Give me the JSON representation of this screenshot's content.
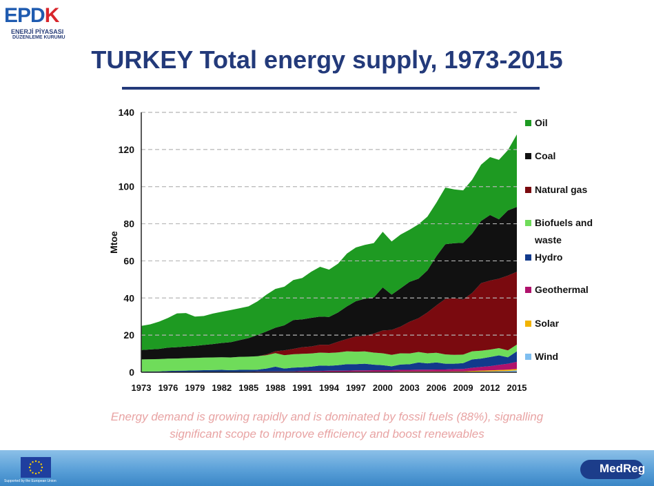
{
  "logo": {
    "mark": "EPDK",
    "line1": "ENERJİ PİYASASI",
    "line2": "DÜZENLEME KURUMU"
  },
  "title": "TURKEY  Total energy supply, 1973-2015",
  "caption": {
    "line1": "Energy demand is growing rapidly and is dominated by fossil fuels (88%), signalling",
    "line2": "significant scope to improve efficiency and boost renewables"
  },
  "footer": {
    "supported_text": "Supported by the European Union",
    "medreg_label": "MedReg"
  },
  "colors": {
    "oil": "#1e9a22",
    "coal": "#111111",
    "natural_gas": "#7a0a0f",
    "biofuels": "#6fdc5a",
    "hydro": "#123a8c",
    "geothermal": "#b0126c",
    "solar": "#f2b400",
    "wind": "#7fbef0",
    "title": "#233a7a",
    "caption": "#e8a3a3"
  },
  "chart_data": {
    "type": "area",
    "stacked": true,
    "ylabel": "Mtoe",
    "xlabel": "",
    "ylim": [
      0,
      140
    ],
    "yticks": [
      0,
      20,
      40,
      60,
      80,
      100,
      120,
      140
    ],
    "xtick_labels": [
      "1973",
      "1976",
      "1979",
      "1982",
      "1985",
      "1988",
      "1991",
      "1994",
      "1997",
      "2000",
      "2003",
      "2006",
      "2009",
      "2012",
      "2015"
    ],
    "grid": "horizontal dashed",
    "legend": "right",
    "x": [
      1973,
      1974,
      1975,
      1976,
      1977,
      1978,
      1979,
      1980,
      1981,
      1982,
      1983,
      1984,
      1985,
      1986,
      1987,
      1988,
      1989,
      1990,
      1991,
      1992,
      1993,
      1994,
      1995,
      1996,
      1997,
      1998,
      1999,
      2000,
      2001,
      2002,
      2003,
      2004,
      2005,
      2006,
      2007,
      2008,
      2009,
      2010,
      2011,
      2012,
      2013,
      2014,
      2015
    ],
    "series": [
      {
        "name": "Wind",
        "color_key": "wind",
        "values": [
          0,
          0,
          0,
          0,
          0,
          0,
          0,
          0,
          0,
          0,
          0,
          0,
          0,
          0,
          0,
          0,
          0,
          0,
          0,
          0,
          0,
          0,
          0,
          0,
          0,
          0,
          0,
          0,
          0,
          0,
          0,
          0,
          0,
          0,
          0,
          0.1,
          0.1,
          0.3,
          0.4,
          0.5,
          0.6,
          0.7,
          1.0
        ]
      },
      {
        "name": "Solar",
        "color_key": "solar",
        "values": [
          0,
          0,
          0,
          0,
          0,
          0,
          0,
          0,
          0,
          0,
          0,
          0,
          0,
          0.1,
          0.1,
          0.1,
          0.1,
          0.1,
          0.2,
          0.2,
          0.2,
          0.2,
          0.2,
          0.2,
          0.3,
          0.3,
          0.3,
          0.3,
          0.3,
          0.4,
          0.4,
          0.4,
          0.4,
          0.4,
          0.4,
          0.4,
          0.4,
          0.4,
          0.5,
          0.5,
          0.6,
          0.7,
          0.8
        ]
      },
      {
        "name": "Geothermal",
        "color_key": "geothermal",
        "values": [
          0.1,
          0.1,
          0.1,
          0.1,
          0.1,
          0.1,
          0.1,
          0.1,
          0.2,
          0.2,
          0.2,
          0.2,
          0.3,
          0.3,
          0.3,
          0.4,
          0.4,
          0.4,
          0.5,
          0.5,
          0.5,
          0.6,
          0.6,
          0.7,
          0.7,
          0.7,
          0.8,
          0.8,
          0.8,
          0.9,
          0.9,
          1.0,
          1.0,
          1.1,
          1.1,
          1.2,
          1.3,
          1.7,
          2.0,
          2.3,
          2.8,
          3.2,
          3.8
        ]
      },
      {
        "name": "Hydro",
        "color_key": "hydro",
        "values": [
          0.2,
          0.3,
          0.4,
          0.6,
          0.7,
          0.8,
          0.9,
          1.0,
          1.0,
          1.1,
          0.9,
          1.1,
          1.0,
          1.0,
          1.6,
          2.5,
          1.5,
          2.0,
          2.0,
          2.3,
          2.9,
          2.7,
          3.0,
          3.5,
          3.4,
          3.6,
          3.0,
          2.7,
          2.1,
          2.9,
          3.0,
          3.9,
          3.4,
          3.8,
          3.1,
          2.9,
          3.1,
          4.5,
          4.5,
          4.9,
          5.1,
          3.5,
          5.7
        ]
      },
      {
        "name": "Biofuels and waste",
        "color_key": "biofuels",
        "values": [
          6.6,
          6.6,
          6.6,
          6.6,
          6.6,
          6.7,
          6.7,
          6.8,
          6.8,
          6.8,
          6.9,
          7.0,
          7.1,
          7.2,
          7.2,
          7.3,
          7.2,
          7.2,
          7.2,
          7.1,
          7.0,
          6.9,
          6.9,
          6.9,
          6.7,
          6.6,
          6.5,
          6.4,
          6.2,
          6.0,
          5.8,
          5.6,
          5.4,
          5.2,
          5.0,
          4.8,
          4.6,
          4.4,
          4.2,
          4.0,
          3.9,
          3.7,
          3.6
        ]
      },
      {
        "name": "Natural gas",
        "color_key": "natural_gas",
        "values": [
          0,
          0,
          0,
          0,
          0,
          0,
          0,
          0,
          0,
          0,
          0,
          0,
          0,
          0,
          0.4,
          1.0,
          2.6,
          2.9,
          3.6,
          3.8,
          4.2,
          4.4,
          5.7,
          6.6,
          8.2,
          8.4,
          10.2,
          12.3,
          13.4,
          14.4,
          17.1,
          18.2,
          22.0,
          25.5,
          29.9,
          30.5,
          29.7,
          31.4,
          36.4,
          37.2,
          37.4,
          40.3,
          39.2
        ]
      },
      {
        "name": "Coal",
        "color_key": "coal",
        "values": [
          5.1,
          5.3,
          5.5,
          6.0,
          6.1,
          6.3,
          6.5,
          6.8,
          7.2,
          7.7,
          8.2,
          9.0,
          10.0,
          11.5,
          12.4,
          12.7,
          13.5,
          15.5,
          15.0,
          15.4,
          15.2,
          15.0,
          15.8,
          17.6,
          19.0,
          20.0,
          19.5,
          23.2,
          19.0,
          20.6,
          21.5,
          21.3,
          22.7,
          26.5,
          29.5,
          29.6,
          30.5,
          32.0,
          33.5,
          35.3,
          32.0,
          35.1,
          35.0
        ]
      },
      {
        "name": "Oil",
        "color_key": "oil",
        "values": [
          13.0,
          13.5,
          14.7,
          16.0,
          18.2,
          18.0,
          15.8,
          15.6,
          16.4,
          16.8,
          17.3,
          17.2,
          17.1,
          18.1,
          19.8,
          20.9,
          20.8,
          21.6,
          22.3,
          24.8,
          26.8,
          25.5,
          26.3,
          28.5,
          28.9,
          29.0,
          29.3,
          30.0,
          28.7,
          29.0,
          28.1,
          29.3,
          28.9,
          28.8,
          30.5,
          29.0,
          28.3,
          29.0,
          30.3,
          31.2,
          32.0,
          32.5,
          39.0
        ]
      }
    ]
  }
}
